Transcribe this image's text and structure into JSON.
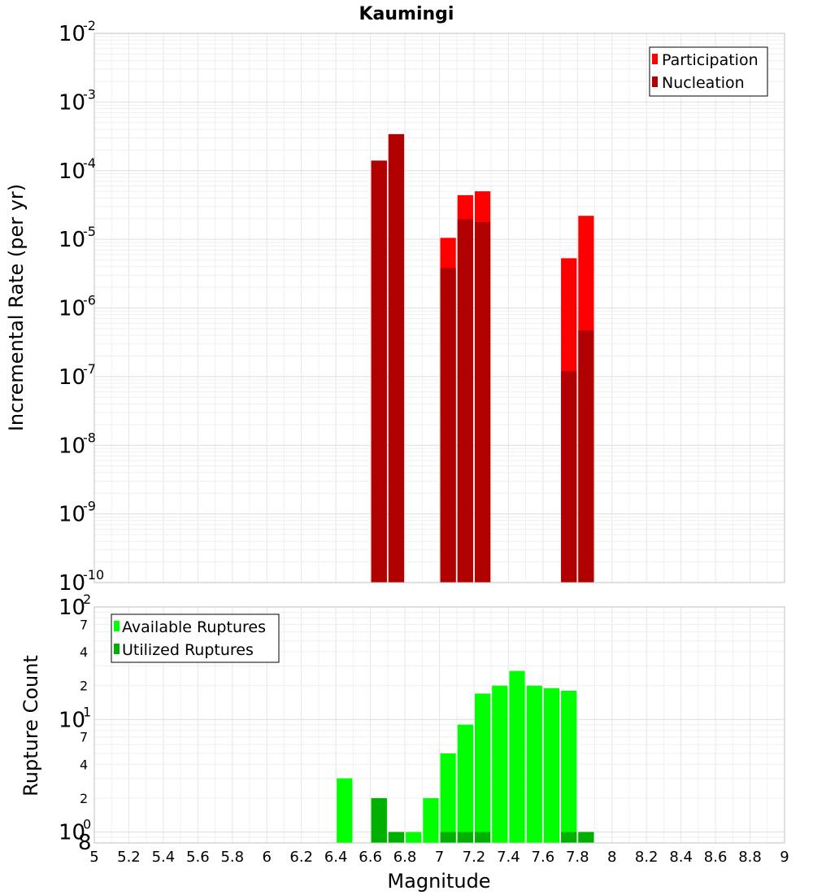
{
  "chart_data": [
    {
      "type": "bar",
      "title": "Kaumingi",
      "ylabel": "Incremental Rate (per yr)",
      "yscale": "log",
      "ylim": [
        1e-10,
        0.01
      ],
      "xlim": [
        5,
        9
      ],
      "bin_width": 0.1,
      "y_ticks": [
        {
          "base": "10",
          "exp": "-10",
          "value": 1e-10
        },
        {
          "base": "10",
          "exp": "-9",
          "value": 1e-09
        },
        {
          "base": "10",
          "exp": "-8",
          "value": 1e-08
        },
        {
          "base": "10",
          "exp": "-7",
          "value": 1e-07
        },
        {
          "base": "10",
          "exp": "-6",
          "value": 1e-06
        },
        {
          "base": "10",
          "exp": "-5",
          "value": 1e-05
        },
        {
          "base": "10",
          "exp": "-4",
          "value": 0.0001
        },
        {
          "base": "10",
          "exp": "-3",
          "value": 0.001
        },
        {
          "base": "10",
          "exp": "-2",
          "value": 0.01
        }
      ],
      "legend": {
        "position": "top-right"
      },
      "series": [
        {
          "name": "Participation",
          "color": "#ff0000",
          "x": [
            6.65,
            6.75,
            7.05,
            7.15,
            7.25,
            7.75,
            7.85
          ],
          "values": [
            0.00014,
            0.00034,
            1.05e-05,
            4.4e-05,
            5e-05,
            5.3e-06,
            2.2e-05
          ]
        },
        {
          "name": "Nucleation",
          "color": "#b00000",
          "x": [
            6.65,
            6.75,
            7.05,
            7.15,
            7.25,
            7.75,
            7.85
          ],
          "values": [
            0.00014,
            0.00034,
            3.8e-06,
            1.95e-05,
            1.78e-05,
            1.2e-07,
            4.7e-07
          ]
        }
      ]
    },
    {
      "type": "bar",
      "xlabel": "Magnitude",
      "ylabel": "Rupture Count",
      "yscale": "log",
      "ylim": [
        0.8,
        100
      ],
      "xlim": [
        5,
        9
      ],
      "bin_width": 0.1,
      "x_tick_labels": [
        "5",
        "5.2",
        "5.4",
        "5.6",
        "5.8",
        "6",
        "6.2",
        "6.4",
        "6.6",
        "6.8",
        "7",
        "7.2",
        "7.4",
        "7.6",
        "7.8",
        "8",
        "8.2",
        "8.4",
        "8.6",
        "8.8",
        "9"
      ],
      "y_major_ticks": [
        {
          "base": "10",
          "exp": "0",
          "value": 1
        },
        {
          "base": "10",
          "exp": "1",
          "value": 10
        },
        {
          "base": "10",
          "exp": "2",
          "value": 100
        }
      ],
      "y_minor_ticks": [
        {
          "label": "8",
          "value": 0.8
        },
        {
          "label": "2",
          "value": 2
        },
        {
          "label": "4",
          "value": 4
        },
        {
          "label": "7",
          "value": 7
        },
        {
          "label": "2",
          "value": 20
        },
        {
          "label": "4",
          "value": 40
        },
        {
          "label": "7",
          "value": 70
        }
      ],
      "legend": {
        "position": "top-left"
      },
      "series": [
        {
          "name": "Available Ruptures",
          "color": "#00ff00",
          "x": [
            6.45,
            6.65,
            6.75,
            6.85,
            6.95,
            7.05,
            7.15,
            7.25,
            7.35,
            7.45,
            7.55,
            7.65,
            7.75,
            7.85
          ],
          "values": [
            3,
            2,
            1,
            1,
            2,
            5,
            9,
            17,
            20,
            27,
            20,
            19,
            18,
            1
          ]
        },
        {
          "name": "Utilized Ruptures",
          "color": "#00b000",
          "x": [
            6.65,
            6.75,
            7.05,
            7.15,
            7.25,
            7.75,
            7.85
          ],
          "values": [
            2,
            1,
            1,
            1,
            1,
            1,
            1
          ]
        }
      ]
    }
  ]
}
